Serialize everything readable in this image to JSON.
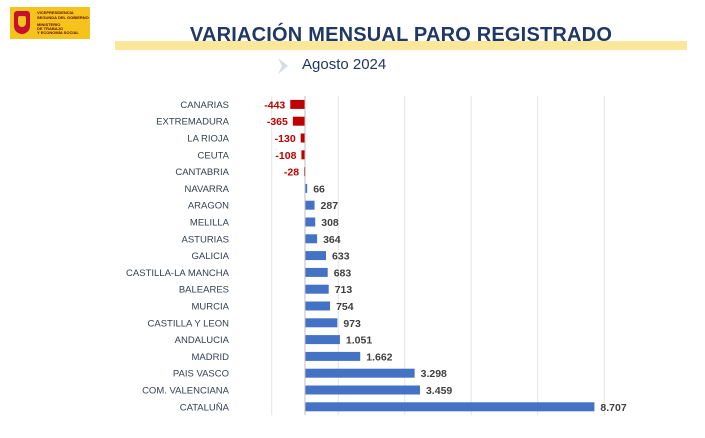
{
  "header": {
    "logo_lines": [
      "VICEPRESIDENCIA",
      "SEGUNDA DEL GOBIERNO",
      "MINISTERIO",
      "DE TRABAJO",
      "Y ECONOMÍA SOCIAL"
    ],
    "title": "VARIACIÓN MENSUAL PARO REGISTRADO",
    "subtitle": "Agosto 2024"
  },
  "colors": {
    "title": "#1f3864",
    "title_band": "#fbe79a",
    "negative_bar": "#c00000",
    "positive_bar": "#4472c4",
    "negative_label": "#c00000",
    "positive_label": "#404040"
  },
  "chart_data": {
    "type": "bar",
    "orientation": "horizontal",
    "title": "VARIACIÓN MENSUAL PARO REGISTRADO",
    "subtitle": "Agosto 2024",
    "categories": [
      "CANARIAS",
      "EXTREMADURA",
      "LA RIOJA",
      "CEUTA",
      "CANTABRIA",
      "NAVARRA",
      "ARAGON",
      "MELILLA",
      "ASTURIAS",
      "GALICIA",
      "CASTILLA-LA MANCHA",
      "BALEARES",
      "MURCIA",
      "CASTILLA Y LEON",
      "ANDALUCIA",
      "MADRID",
      "PAIS VASCO",
      "COM. VALENCIANA",
      "CATALUÑA"
    ],
    "values": [
      -443,
      -365,
      -130,
      -108,
      -28,
      66,
      287,
      308,
      364,
      633,
      683,
      713,
      754,
      973,
      1051,
      1662,
      3298,
      3459,
      8707
    ],
    "value_labels": [
      "-443",
      "-365",
      "-130",
      "-108",
      "-28",
      "66",
      "287",
      "308",
      "364",
      "633",
      "683",
      "713",
      "754",
      "973",
      "1.051",
      "1.662",
      "3.298",
      "3.459",
      "8.707"
    ],
    "xlim": [
      -1000,
      9000
    ],
    "grid": true,
    "xlabel": "",
    "ylabel": ""
  }
}
